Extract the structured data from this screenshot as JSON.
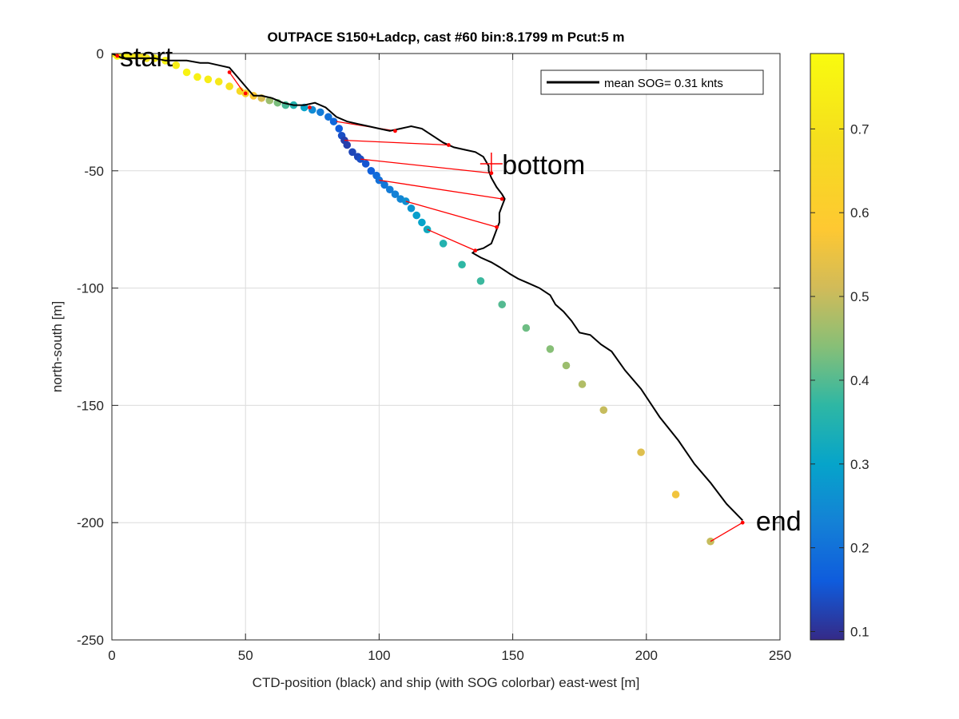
{
  "chart_data": {
    "type": "scatter",
    "title": "OUTPACE S150+Ladcp, cast #60 bin:8.1799 m  Pcut:5 m",
    "xlabel": "CTD-position (black) and ship (with SOG colorbar) east-west [m]",
    "ylabel": "north-south [m]",
    "xlim": [
      0,
      250
    ],
    "ylim": [
      -250,
      0
    ],
    "xticks": [
      0,
      50,
      100,
      150,
      200,
      250
    ],
    "yticks": [
      -250,
      -200,
      -150,
      -100,
      -50,
      0
    ],
    "grid": true,
    "legend": {
      "placement": "top-right",
      "label": "mean SOG=  0.31 knts",
      "color": "#000000"
    },
    "annotations": [
      {
        "text": "start",
        "x": 3,
        "y": -2
      },
      {
        "text": "bottom",
        "x": 146,
        "y": -48
      },
      {
        "text": "end",
        "x": 241,
        "y": -200
      }
    ],
    "ctd_track": [
      [
        0,
        0
      ],
      [
        4,
        -2
      ],
      [
        8,
        -2
      ],
      [
        12,
        -2
      ],
      [
        16,
        -2
      ],
      [
        20,
        -3
      ],
      [
        24,
        -3
      ],
      [
        28,
        -3
      ],
      [
        33,
        -4
      ],
      [
        36,
        -4
      ],
      [
        40,
        -5
      ],
      [
        44,
        -6
      ],
      [
        47,
        -10
      ],
      [
        50,
        -14
      ],
      [
        53,
        -18
      ],
      [
        56,
        -18
      ],
      [
        60,
        -19
      ],
      [
        64,
        -21
      ],
      [
        68,
        -22
      ],
      [
        72,
        -22
      ],
      [
        76,
        -21
      ],
      [
        80,
        -23
      ],
      [
        84,
        -27
      ],
      [
        88,
        -29
      ],
      [
        92,
        -30
      ],
      [
        96,
        -31
      ],
      [
        100,
        -32
      ],
      [
        104,
        -33
      ],
      [
        108,
        -32
      ],
      [
        112,
        -31
      ],
      [
        116,
        -32
      ],
      [
        120,
        -35
      ],
      [
        124,
        -38
      ],
      [
        128,
        -40
      ],
      [
        132,
        -41
      ],
      [
        136,
        -42
      ],
      [
        139,
        -44
      ],
      [
        140,
        -46
      ],
      [
        141,
        -48
      ],
      [
        141,
        -50
      ],
      [
        142,
        -53
      ],
      [
        144,
        -57
      ],
      [
        146,
        -60
      ],
      [
        147,
        -62
      ],
      [
        146,
        -65
      ],
      [
        145,
        -68
      ],
      [
        145,
        -72
      ],
      [
        144,
        -75
      ],
      [
        143,
        -78
      ],
      [
        142,
        -81
      ],
      [
        139,
        -83
      ],
      [
        136,
        -84
      ],
      [
        135,
        -85
      ],
      [
        138,
        -87
      ],
      [
        142,
        -89
      ],
      [
        145,
        -91
      ],
      [
        149,
        -94
      ],
      [
        152,
        -96
      ],
      [
        156,
        -98
      ],
      [
        160,
        -100
      ],
      [
        164,
        -103
      ],
      [
        166,
        -107
      ],
      [
        169,
        -110
      ],
      [
        172,
        -114
      ],
      [
        175,
        -119
      ],
      [
        179,
        -120
      ],
      [
        183,
        -124
      ],
      [
        187,
        -127
      ],
      [
        192,
        -135
      ],
      [
        198,
        -143
      ],
      [
        205,
        -155
      ],
      [
        212,
        -165
      ],
      [
        218,
        -175
      ],
      [
        224,
        -183
      ],
      [
        230,
        -192
      ],
      [
        236,
        -199
      ]
    ],
    "ctd_bin_markers": [
      [
        2,
        -1
      ],
      [
        44,
        -8
      ],
      [
        50,
        -17
      ],
      [
        74,
        -23
      ],
      [
        106,
        -33
      ],
      [
        126,
        -39
      ],
      [
        142,
        -51
      ],
      [
        146,
        -62
      ],
      [
        144,
        -74
      ],
      [
        136,
        -84
      ],
      [
        236,
        -200
      ]
    ],
    "ship_ctd_links": [
      [
        [
          2,
          -1
        ],
        [
          2,
          -1
        ]
      ],
      [
        [
          44,
          -8
        ],
        [
          49,
          -16
        ]
      ],
      [
        [
          50,
          -17
        ],
        [
          50,
          -17
        ]
      ],
      [
        [
          74,
          -23
        ],
        [
          74,
          -23
        ]
      ],
      [
        [
          84,
          -29
        ],
        [
          106,
          -33
        ]
      ],
      [
        [
          87,
          -37
        ],
        [
          126,
          -39
        ]
      ],
      [
        [
          93,
          -45
        ],
        [
          142,
          -51
        ]
      ],
      [
        [
          100,
          -54
        ],
        [
          146,
          -62
        ]
      ],
      [
        [
          110,
          -63
        ],
        [
          144,
          -74
        ]
      ],
      [
        [
          118,
          -75
        ],
        [
          136,
          -84
        ]
      ],
      [
        [
          224,
          -208
        ],
        [
          236,
          -200
        ]
      ]
    ],
    "ship_points": [
      [
        0,
        0,
        0.75
      ],
      [
        2,
        -1,
        0.76
      ],
      [
        4,
        -1,
        0.74
      ],
      [
        5,
        -1,
        0.76
      ],
      [
        7,
        -1,
        0.74
      ],
      [
        9,
        -1,
        0.72
      ],
      [
        11,
        -1,
        0.7
      ],
      [
        13,
        -2,
        0.72
      ],
      [
        16,
        -2,
        0.74
      ],
      [
        20,
        -3,
        0.76
      ],
      [
        24,
        -5,
        0.74
      ],
      [
        28,
        -8,
        0.76
      ],
      [
        32,
        -10,
        0.75
      ],
      [
        36,
        -11,
        0.74
      ],
      [
        40,
        -12,
        0.72
      ],
      [
        44,
        -14,
        0.7
      ],
      [
        48,
        -16,
        0.66
      ],
      [
        50,
        -17,
        0.62
      ],
      [
        53,
        -18,
        0.58
      ],
      [
        56,
        -19,
        0.52
      ],
      [
        59,
        -20,
        0.46
      ],
      [
        62,
        -21,
        0.43
      ],
      [
        65,
        -22,
        0.39
      ],
      [
        68,
        -22,
        0.35
      ],
      [
        72,
        -23,
        0.3
      ],
      [
        75,
        -24,
        0.25
      ],
      [
        78,
        -25,
        0.22
      ],
      [
        81,
        -27,
        0.2
      ],
      [
        83,
        -29,
        0.18
      ],
      [
        85,
        -32,
        0.16
      ],
      [
        86,
        -35,
        0.14
      ],
      [
        87,
        -37,
        0.12
      ],
      [
        88,
        -39,
        0.12
      ],
      [
        90,
        -42,
        0.13
      ],
      [
        92,
        -44,
        0.13
      ],
      [
        93,
        -45,
        0.14
      ],
      [
        95,
        -47,
        0.15
      ],
      [
        97,
        -50,
        0.17
      ],
      [
        99,
        -52,
        0.19
      ],
      [
        100,
        -54,
        0.2
      ],
      [
        102,
        -56,
        0.21
      ],
      [
        104,
        -58,
        0.22
      ],
      [
        106,
        -60,
        0.23
      ],
      [
        108,
        -62,
        0.24
      ],
      [
        110,
        -63,
        0.26
      ],
      [
        112,
        -66,
        0.27
      ],
      [
        114,
        -69,
        0.29
      ],
      [
        116,
        -72,
        0.3
      ],
      [
        118,
        -75,
        0.32
      ],
      [
        124,
        -81,
        0.35
      ],
      [
        131,
        -90,
        0.37
      ],
      [
        138,
        -97,
        0.38
      ],
      [
        146,
        -107,
        0.4
      ],
      [
        155,
        -117,
        0.42
      ],
      [
        164,
        -126,
        0.44
      ],
      [
        170,
        -133,
        0.46
      ],
      [
        176,
        -141,
        0.48
      ],
      [
        184,
        -152,
        0.5
      ],
      [
        198,
        -170,
        0.53
      ],
      [
        211,
        -188,
        0.56
      ],
      [
        224,
        -208,
        0.5
      ]
    ],
    "colorbar": {
      "colormap": "parula",
      "min": 0.09,
      "max": 0.79,
      "ticks": [
        0.1,
        0.2,
        0.3,
        0.4,
        0.5,
        0.6,
        0.7
      ]
    }
  }
}
